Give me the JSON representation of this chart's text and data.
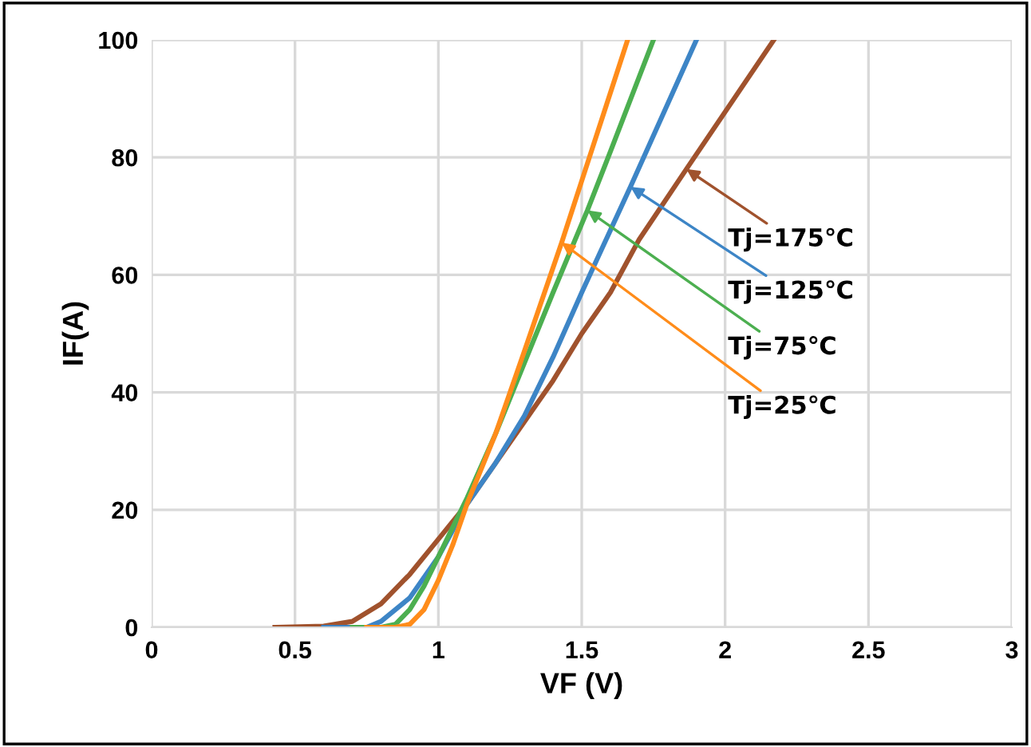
{
  "chart_data": {
    "type": "line",
    "xlabel": "VF (V)",
    "ylabel": "IF(A)",
    "xlim": [
      0,
      3
    ],
    "xticks": [
      0,
      0.5,
      1,
      1.5,
      2,
      2.5,
      3
    ],
    "ylim": [
      0,
      100
    ],
    "yticks": [
      0,
      20,
      40,
      60,
      80,
      100
    ],
    "grid": true,
    "legend": false,
    "marker": "none",
    "line_style": "solid",
    "series": [
      {
        "color": "#a0522d",
        "x": [
          0.43,
          0.6,
          0.7,
          0.8,
          0.9,
          1.0,
          1.1,
          1.2,
          1.3,
          1.4,
          1.5,
          1.6,
          1.7,
          1.865,
          2.17
        ],
        "values": [
          0,
          0.2,
          1,
          4,
          9,
          15,
          21,
          28,
          35,
          42,
          50,
          57,
          66,
          78,
          100
        ]
      },
      {
        "color": "#3d85c6",
        "x": [
          0.6,
          0.75,
          0.8,
          0.9,
          1.0,
          1.1,
          1.2,
          1.3,
          1.4,
          1.5,
          1.67,
          1.9
        ],
        "values": [
          0,
          0,
          1,
          5,
          12,
          21,
          28,
          36,
          46,
          57,
          75,
          100
        ]
      },
      {
        "color": "#4caf50",
        "x": [
          0.7,
          0.8,
          0.85,
          0.9,
          0.95,
          1.0,
          1.1,
          1.2,
          1.3,
          1.4,
          1.52,
          1.6,
          1.75
        ],
        "values": [
          0,
          0,
          0.5,
          3,
          7,
          12,
          22,
          33,
          45,
          57,
          71,
          81,
          100
        ]
      },
      {
        "color": "#ff8c1a",
        "x": [
          0.75,
          0.85,
          0.9,
          0.95,
          1.0,
          1.05,
          1.1,
          1.2,
          1.3,
          1.43,
          1.5,
          1.6,
          1.66
        ],
        "values": [
          0,
          0,
          0.5,
          3,
          8,
          14,
          21,
          33,
          47,
          65.5,
          76,
          91,
          100
        ]
      }
    ],
    "annotations": [
      {
        "text": "Tj=175℃",
        "x": 1.865,
        "y": 78
      },
      {
        "text": "Tj=125℃",
        "x": 1.67,
        "y": 75
      },
      {
        "text": "Tj=75℃",
        "x": 1.52,
        "y": 71
      },
      {
        "text": "Tj=25℃",
        "x": 1.43,
        "y": 65.5
      }
    ]
  }
}
